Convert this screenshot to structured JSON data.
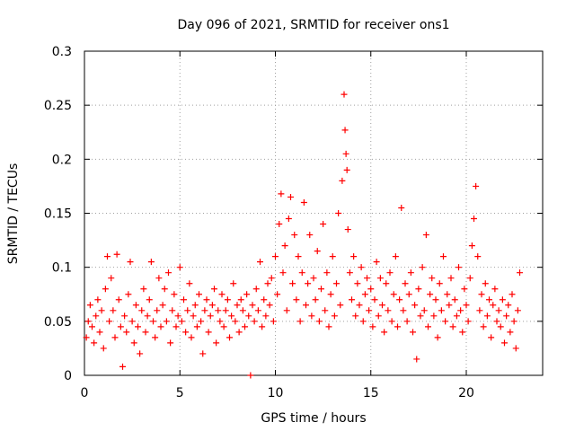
{
  "chart_data": {
    "type": "scatter",
    "title": "Day 096 of 2021, SRMTID for receiver ons1",
    "xlabel": "GPS time / hours",
    "ylabel": "SRMTID / TECUs",
    "xlim": [
      0,
      24
    ],
    "ylim": [
      0,
      0.3
    ],
    "xticks": [
      0,
      5,
      10,
      15,
      20
    ],
    "yticks": [
      0,
      0.05,
      0.1,
      0.15,
      0.2,
      0.25,
      0.3
    ],
    "xtick_labels": [
      "0",
      "5",
      "10",
      "15",
      "20"
    ],
    "ytick_labels": [
      "0",
      "0.05",
      "0.1",
      "0.15",
      "0.2",
      "0.25",
      "0.3"
    ],
    "grid": true,
    "marker": "+",
    "color": "#ff0000",
    "series": [
      {
        "name": "SRMTID",
        "points": [
          [
            0.1,
            0.035
          ],
          [
            0.2,
            0.05
          ],
          [
            0.3,
            0.065
          ],
          [
            0.4,
            0.045
          ],
          [
            0.5,
            0.03
          ],
          [
            0.6,
            0.055
          ],
          [
            0.7,
            0.07
          ],
          [
            0.8,
            0.04
          ],
          [
            0.9,
            0.06
          ],
          [
            1.0,
            0.025
          ],
          [
            1.1,
            0.08
          ],
          [
            1.2,
            0.11
          ],
          [
            1.3,
            0.05
          ],
          [
            1.4,
            0.09
          ],
          [
            1.5,
            0.06
          ],
          [
            1.6,
            0.035
          ],
          [
            1.7,
            0.112
          ],
          [
            1.8,
            0.07
          ],
          [
            1.9,
            0.045
          ],
          [
            2.0,
            0.008
          ],
          [
            2.1,
            0.055
          ],
          [
            2.2,
            0.04
          ],
          [
            2.3,
            0.075
          ],
          [
            2.4,
            0.105
          ],
          [
            2.5,
            0.05
          ],
          [
            2.6,
            0.03
          ],
          [
            2.7,
            0.065
          ],
          [
            2.8,
            0.045
          ],
          [
            2.9,
            0.02
          ],
          [
            3.0,
            0.06
          ],
          [
            3.1,
            0.08
          ],
          [
            3.2,
            0.04
          ],
          [
            3.3,
            0.055
          ],
          [
            3.4,
            0.07
          ],
          [
            3.5,
            0.105
          ],
          [
            3.6,
            0.05
          ],
          [
            3.7,
            0.035
          ],
          [
            3.8,
            0.06
          ],
          [
            3.9,
            0.09
          ],
          [
            4.0,
            0.045
          ],
          [
            4.1,
            0.065
          ],
          [
            4.2,
            0.08
          ],
          [
            4.3,
            0.05
          ],
          [
            4.4,
            0.095
          ],
          [
            4.5,
            0.03
          ],
          [
            4.6,
            0.06
          ],
          [
            4.7,
            0.075
          ],
          [
            4.8,
            0.045
          ],
          [
            4.9,
            0.055
          ],
          [
            5.0,
            0.1
          ],
          [
            5.1,
            0.05
          ],
          [
            5.2,
            0.07
          ],
          [
            5.3,
            0.04
          ],
          [
            5.4,
            0.06
          ],
          [
            5.5,
            0.085
          ],
          [
            5.6,
            0.035
          ],
          [
            5.7,
            0.055
          ],
          [
            5.8,
            0.065
          ],
          [
            5.9,
            0.045
          ],
          [
            6.0,
            0.075
          ],
          [
            6.1,
            0.05
          ],
          [
            6.2,
            0.02
          ],
          [
            6.3,
            0.06
          ],
          [
            6.4,
            0.07
          ],
          [
            6.5,
            0.04
          ],
          [
            6.6,
            0.055
          ],
          [
            6.7,
            0.065
          ],
          [
            6.8,
            0.08
          ],
          [
            6.9,
            0.03
          ],
          [
            7.0,
            0.06
          ],
          [
            7.1,
            0.05
          ],
          [
            7.2,
            0.075
          ],
          [
            7.3,
            0.045
          ],
          [
            7.4,
            0.06
          ],
          [
            7.5,
            0.07
          ],
          [
            7.6,
            0.035
          ],
          [
            7.7,
            0.055
          ],
          [
            7.8,
            0.085
          ],
          [
            7.9,
            0.05
          ],
          [
            8.0,
            0.065
          ],
          [
            8.1,
            0.04
          ],
          [
            8.2,
            0.07
          ],
          [
            8.3,
            0.06
          ],
          [
            8.4,
            0.045
          ],
          [
            8.5,
            0.075
          ],
          [
            8.6,
            0.055
          ],
          [
            8.7,
            0.0
          ],
          [
            8.8,
            0.065
          ],
          [
            8.9,
            0.05
          ],
          [
            9.0,
            0.08
          ],
          [
            9.1,
            0.06
          ],
          [
            9.2,
            0.105
          ],
          [
            9.3,
            0.045
          ],
          [
            9.4,
            0.07
          ],
          [
            9.5,
            0.055
          ],
          [
            9.6,
            0.085
          ],
          [
            9.7,
            0.065
          ],
          [
            9.8,
            0.09
          ],
          [
            9.9,
            0.05
          ],
          [
            10.0,
            0.11
          ],
          [
            10.1,
            0.075
          ],
          [
            10.2,
            0.14
          ],
          [
            10.3,
            0.168
          ],
          [
            10.4,
            0.095
          ],
          [
            10.5,
            0.12
          ],
          [
            10.6,
            0.06
          ],
          [
            10.7,
            0.145
          ],
          [
            10.8,
            0.165
          ],
          [
            10.9,
            0.085
          ],
          [
            11.0,
            0.13
          ],
          [
            11.1,
            0.07
          ],
          [
            11.2,
            0.11
          ],
          [
            11.3,
            0.05
          ],
          [
            11.4,
            0.095
          ],
          [
            11.5,
            0.16
          ],
          [
            11.6,
            0.065
          ],
          [
            11.7,
            0.085
          ],
          [
            11.8,
            0.13
          ],
          [
            11.9,
            0.055
          ],
          [
            12.0,
            0.09
          ],
          [
            12.1,
            0.07
          ],
          [
            12.2,
            0.115
          ],
          [
            12.3,
            0.05
          ],
          [
            12.4,
            0.08
          ],
          [
            12.5,
            0.14
          ],
          [
            12.6,
            0.06
          ],
          [
            12.7,
            0.095
          ],
          [
            12.8,
            0.045
          ],
          [
            12.9,
            0.075
          ],
          [
            13.0,
            0.11
          ],
          [
            13.1,
            0.055
          ],
          [
            13.2,
            0.085
          ],
          [
            13.3,
            0.15
          ],
          [
            13.4,
            0.065
          ],
          [
            13.5,
            0.18
          ],
          [
            13.6,
            0.26
          ],
          [
            13.65,
            0.227
          ],
          [
            13.7,
            0.205
          ],
          [
            13.75,
            0.19
          ],
          [
            13.8,
            0.135
          ],
          [
            13.9,
            0.095
          ],
          [
            14.0,
            0.07
          ],
          [
            14.1,
            0.11
          ],
          [
            14.2,
            0.055
          ],
          [
            14.3,
            0.085
          ],
          [
            14.4,
            0.065
          ],
          [
            14.5,
            0.1
          ],
          [
            14.6,
            0.05
          ],
          [
            14.7,
            0.075
          ],
          [
            14.8,
            0.09
          ],
          [
            14.9,
            0.06
          ],
          [
            15.0,
            0.08
          ],
          [
            15.1,
            0.045
          ],
          [
            15.2,
            0.07
          ],
          [
            15.3,
            0.105
          ],
          [
            15.4,
            0.055
          ],
          [
            15.5,
            0.09
          ],
          [
            15.6,
            0.065
          ],
          [
            15.7,
            0.04
          ],
          [
            15.8,
            0.085
          ],
          [
            15.9,
            0.06
          ],
          [
            16.0,
            0.095
          ],
          [
            16.1,
            0.05
          ],
          [
            16.2,
            0.075
          ],
          [
            16.3,
            0.11
          ],
          [
            16.4,
            0.045
          ],
          [
            16.5,
            0.07
          ],
          [
            16.6,
            0.155
          ],
          [
            16.7,
            0.06
          ],
          [
            16.8,
            0.085
          ],
          [
            16.9,
            0.05
          ],
          [
            17.0,
            0.075
          ],
          [
            17.1,
            0.095
          ],
          [
            17.2,
            0.04
          ],
          [
            17.3,
            0.065
          ],
          [
            17.4,
            0.015
          ],
          [
            17.5,
            0.08
          ],
          [
            17.6,
            0.055
          ],
          [
            17.7,
            0.1
          ],
          [
            17.8,
            0.06
          ],
          [
            17.9,
            0.13
          ],
          [
            18.0,
            0.045
          ],
          [
            18.1,
            0.075
          ],
          [
            18.2,
            0.09
          ],
          [
            18.3,
            0.055
          ],
          [
            18.4,
            0.07
          ],
          [
            18.5,
            0.035
          ],
          [
            18.6,
            0.085
          ],
          [
            18.7,
            0.06
          ],
          [
            18.8,
            0.11
          ],
          [
            18.9,
            0.05
          ],
          [
            19.0,
            0.075
          ],
          [
            19.1,
            0.065
          ],
          [
            19.2,
            0.09
          ],
          [
            19.3,
            0.045
          ],
          [
            19.4,
            0.07
          ],
          [
            19.5,
            0.055
          ],
          [
            19.6,
            0.1
          ],
          [
            19.7,
            0.06
          ],
          [
            19.8,
            0.04
          ],
          [
            19.9,
            0.08
          ],
          [
            20.0,
            0.065
          ],
          [
            20.1,
            0.05
          ],
          [
            20.2,
            0.09
          ],
          [
            20.3,
            0.12
          ],
          [
            20.4,
            0.145
          ],
          [
            20.5,
            0.175
          ],
          [
            20.6,
            0.11
          ],
          [
            20.7,
            0.06
          ],
          [
            20.8,
            0.075
          ],
          [
            20.9,
            0.045
          ],
          [
            21.0,
            0.085
          ],
          [
            21.1,
            0.055
          ],
          [
            21.2,
            0.07
          ],
          [
            21.3,
            0.035
          ],
          [
            21.4,
            0.065
          ],
          [
            21.5,
            0.08
          ],
          [
            21.6,
            0.05
          ],
          [
            21.7,
            0.06
          ],
          [
            21.8,
            0.045
          ],
          [
            21.9,
            0.07
          ],
          [
            22.0,
            0.03
          ],
          [
            22.1,
            0.055
          ],
          [
            22.2,
            0.065
          ],
          [
            22.3,
            0.04
          ],
          [
            22.4,
            0.075
          ],
          [
            22.5,
            0.05
          ],
          [
            22.6,
            0.025
          ],
          [
            22.7,
            0.06
          ],
          [
            22.8,
            0.095
          ]
        ]
      }
    ]
  }
}
